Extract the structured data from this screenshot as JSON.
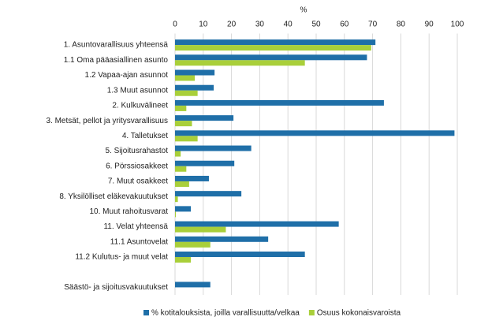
{
  "chart_data": {
    "type": "hbar",
    "x_label": "%",
    "categories": [
      "1. Asuntovarallisuus yhteensä",
      "1.1 Oma pääasiallinen asunto",
      "1.2 Vapaa-ajan asunnot",
      "1.3 Muut asunnot",
      "2. Kulkuvälineet",
      "3. Metsät, pellot ja yritysvarallisuus",
      "4. Talletukset",
      "5. Sijoitusrahastot",
      "6. Pörssiosakkeet",
      "7. Muut osakkeet",
      "8. Yksilölliset eläkevakuutukset",
      "10. Muut rahoitusvarat",
      "11. Velat yhteensä",
      "11.1 Asuntovelat",
      "11.2 Kulutus- ja muut velat",
      null,
      "Säästö- ja sijoitusvakuutukset"
    ],
    "series": [
      {
        "name": "% kotitalouksista, joilla varallisuutta/velkaa",
        "color": "#1f6fa8",
        "values": [
          71,
          68,
          14,
          13.7,
          74,
          20.7,
          99,
          27,
          21,
          12,
          23.5,
          5.6,
          58,
          33,
          46,
          null,
          12.5
        ]
      },
      {
        "name": "Osuus kokonaisvaroista",
        "color": "#a9cf3a",
        "values": [
          69.5,
          46,
          7,
          8,
          4,
          6,
          8,
          2,
          4,
          5,
          1,
          0.3,
          18,
          12.5,
          5.6,
          null,
          null
        ]
      }
    ],
    "xlim": [
      0,
      100
    ],
    "xticks": [
      0,
      10,
      20,
      30,
      40,
      50,
      60,
      70,
      80,
      90,
      100
    ],
    "grid": true
  }
}
